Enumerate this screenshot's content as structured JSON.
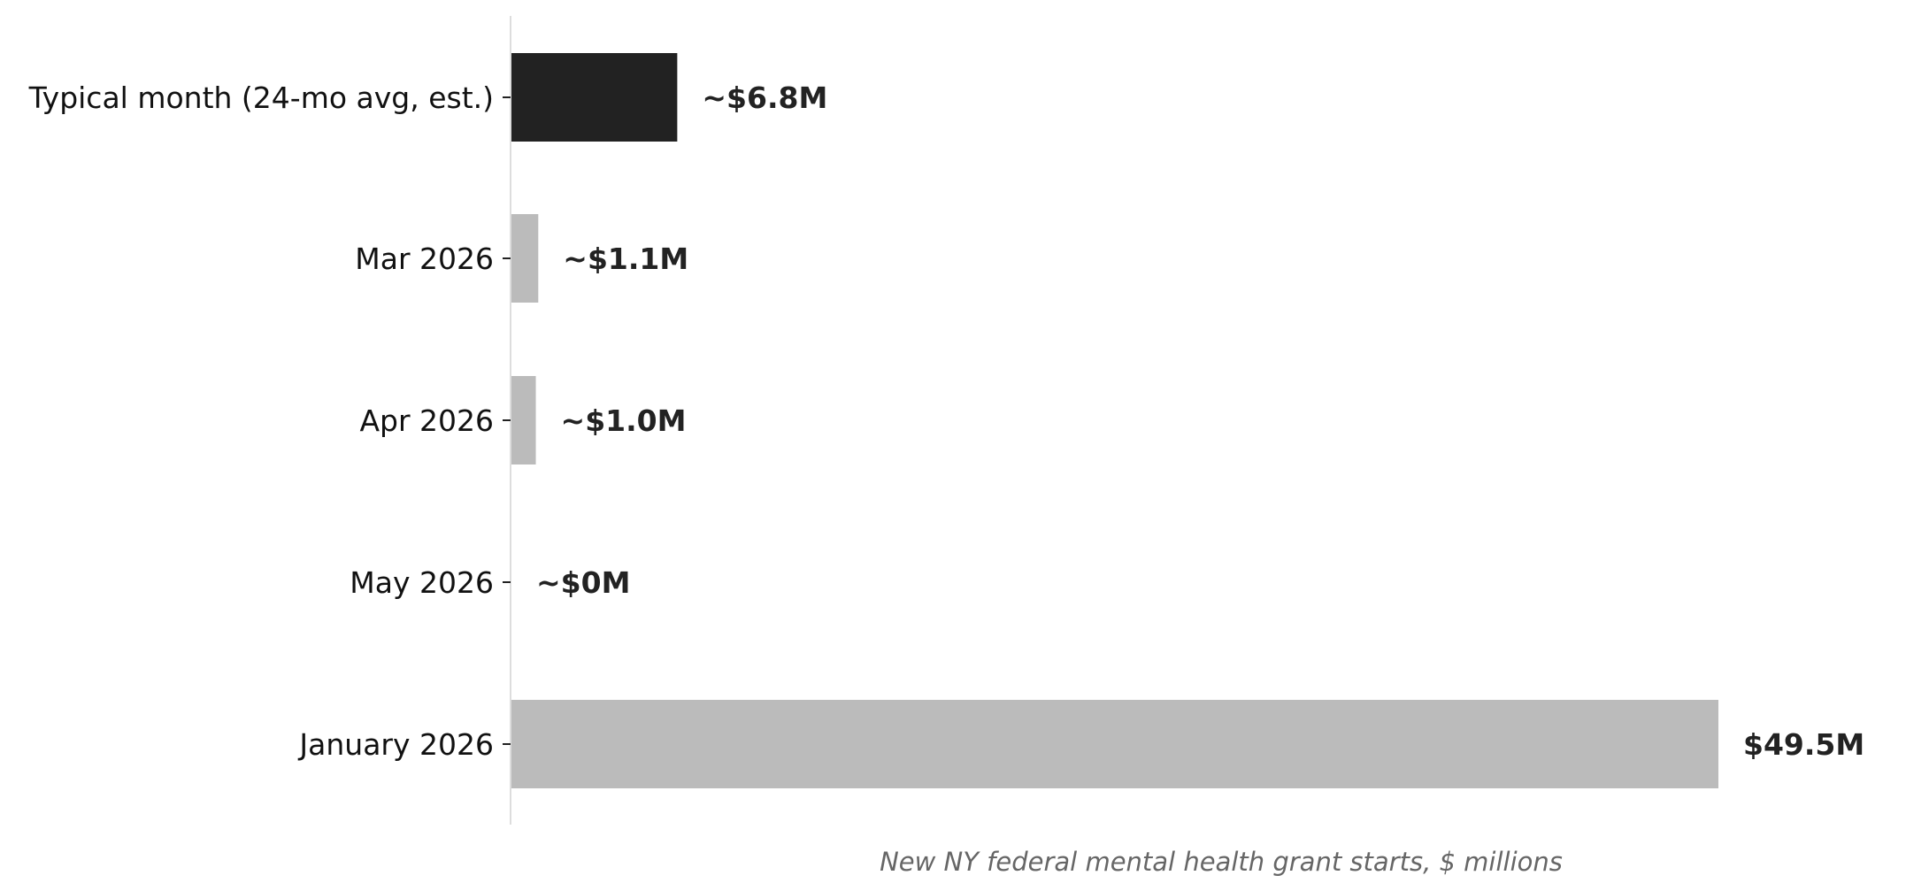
{
  "chart_data": {
    "type": "bar",
    "orientation": "horizontal",
    "title": "",
    "xlabel": "New NY federal mental health grant starts, $ millions",
    "ylabel": "",
    "categories": [
      "Typical month (24-mo avg, est.)",
      "Mar 2026",
      "Apr 2026",
      "May 2026",
      "January 2026"
    ],
    "values": [
      6.8,
      1.1,
      1.0,
      0,
      49.5
    ],
    "value_labels": [
      "~$6.8M",
      "~$1.1M",
      "~$1.0M",
      "~$0M",
      "$49.5M"
    ],
    "bar_colors": [
      "#222222",
      "#bbbbbb",
      "#bbbbbb",
      "#bbbbbb",
      "#bbbbbb"
    ],
    "xlim": [
      0,
      57.4
    ],
    "grid": false,
    "legend": "none"
  }
}
